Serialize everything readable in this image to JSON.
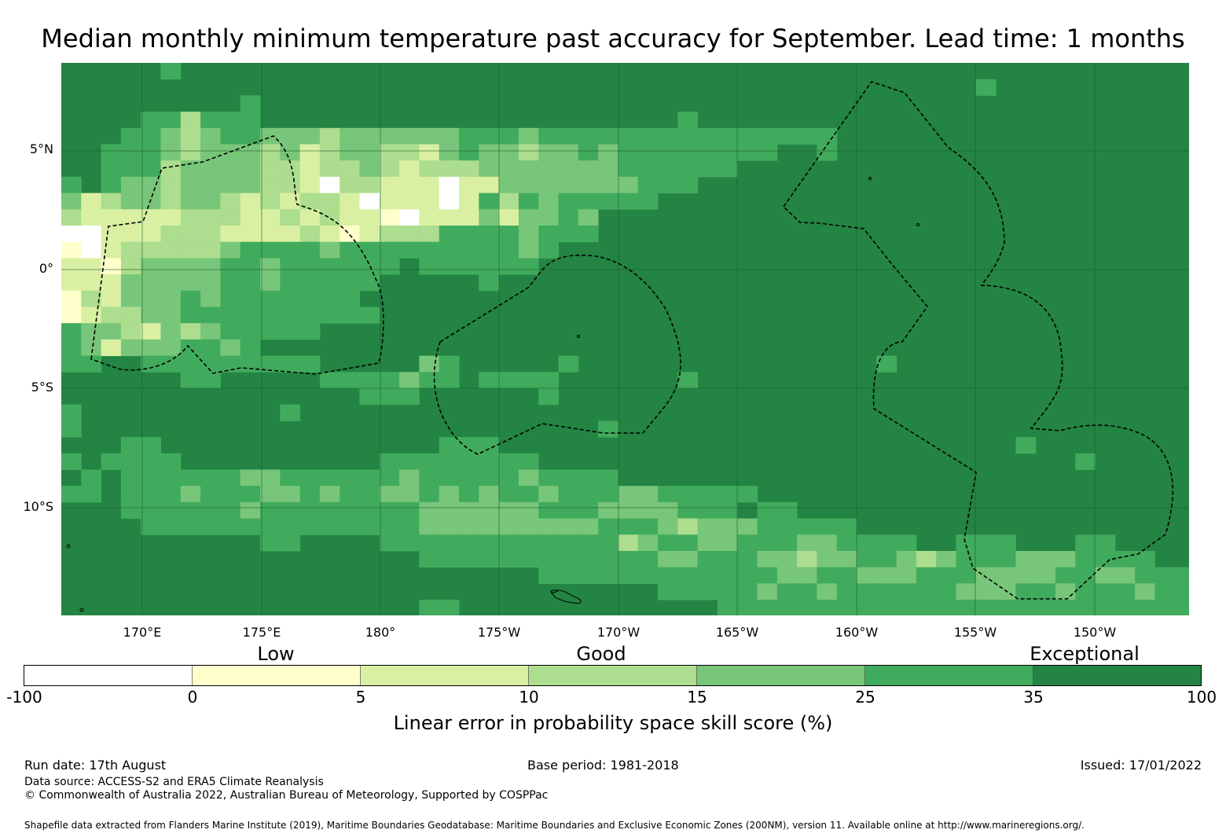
{
  "title": "Median monthly minimum temperature past accuracy for September. Lead time: 1 months",
  "map": {
    "lat_labels": [
      "5°N",
      "0°",
      "5°S",
      "10°S"
    ],
    "lon_labels": [
      "170°E",
      "175°E",
      "180°",
      "175°W",
      "170°W",
      "165°W",
      "160°W",
      "155°W",
      "150°W"
    ],
    "lon_range_deg_east": [
      166.6,
      214.0
    ],
    "lat_range_deg": [
      -14.6,
      8.6
    ],
    "gridlines": true,
    "dominant_category": "35 to 100 (dark green)",
    "eez_outlines": "dashed black"
  },
  "legend": {
    "categories": [
      "Low",
      "Good",
      "Exceptional"
    ],
    "ticks": [
      "-100",
      "0",
      "5",
      "10",
      "15",
      "25",
      "35",
      "100"
    ],
    "colors": [
      "#ffffff",
      "#ffffcc",
      "#d9f0a3",
      "#addd8e",
      "#78c679",
      "#41ab5d",
      "#238443"
    ],
    "label": "Linear error in probability space skill score (%)"
  },
  "footer": {
    "run_date": "Run date: 17th August",
    "base_period": "Base period: 1981-2018",
    "issued": "Issued: 17/01/2022",
    "data_source": "Data source: ACCESS-S2 and ERA5 Climate Reanalysis",
    "copyright": "© Commonwealth of Australia 2022, Australian Bureau of Meteorology, Supported by COSPPac",
    "shapefile": "Shapefile data extracted from Flanders Marine Institute (2019), Maritime Boundaries Geodatabase: Maritime Boundaries and Exclusive Economic Zones (200NM), version 11. Available online at http://www.marineregions.org/."
  }
}
